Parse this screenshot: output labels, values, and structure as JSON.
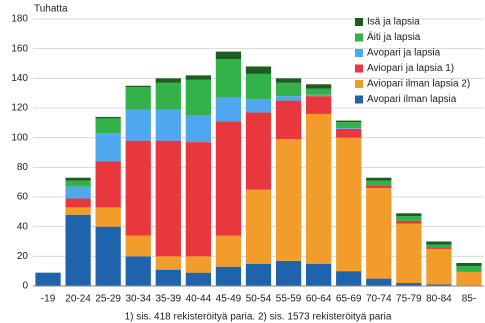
{
  "chart_data": {
    "type": "stacked_bar",
    "y_axis_label": "Tuhatta",
    "footnote": "1) sis. 418 rekisteröityä paria.  2) sis. 1573 rekisteröityä paria",
    "categories": [
      "-19",
      "20-24",
      "25-29",
      "30-34",
      "35-39",
      "40-44",
      "45-49",
      "50-54",
      "55-59",
      "60-64",
      "65-69",
      "70-74",
      "75-79",
      "80-84",
      "85-"
    ],
    "series": [
      {
        "name": "Isä ja lapsia",
        "color": "#1b5e20",
        "values": [
          0,
          2,
          1,
          1,
          3,
          3,
          5,
          5,
          3,
          3,
          1,
          2,
          2,
          2,
          2
        ]
      },
      {
        "name": "Äiti ja lapsia",
        "color": "#33b24a",
        "values": [
          0,
          4,
          10,
          15,
          18,
          24,
          26,
          17,
          9,
          4,
          4,
          3,
          3,
          2,
          4
        ]
      },
      {
        "name": "Avopari ja lapsia",
        "color": "#4fa8ef",
        "values": [
          0,
          8,
          19,
          21,
          21,
          18,
          16,
          9,
          3,
          1,
          0.5,
          0,
          0,
          0,
          0
        ]
      },
      {
        "name": "Aviopari ja lapsia 1)",
        "color": "#e8383d",
        "values": [
          0,
          6,
          31,
          64,
          78,
          77,
          77,
          52,
          26,
          12,
          6,
          2,
          2,
          1,
          0
        ]
      },
      {
        "name": "Aviopari ilman lapsia 2)",
        "color": "#f29c2b",
        "values": [
          0,
          5,
          13,
          14,
          9,
          11,
          21,
          50,
          82,
          101,
          90,
          61,
          40,
          24,
          9
        ]
      },
      {
        "name": "Avopari ilman lapsia",
        "color": "#1f63ad",
        "values": [
          9,
          48,
          40,
          20,
          11,
          9,
          13,
          15,
          17,
          15,
          10,
          5,
          2,
          1,
          0.5
        ]
      }
    ],
    "ylim": [
      0,
      180
    ],
    "yticks": [
      0,
      20,
      40,
      60,
      80,
      100,
      120,
      140,
      160,
      180
    ],
    "grid": true
  }
}
